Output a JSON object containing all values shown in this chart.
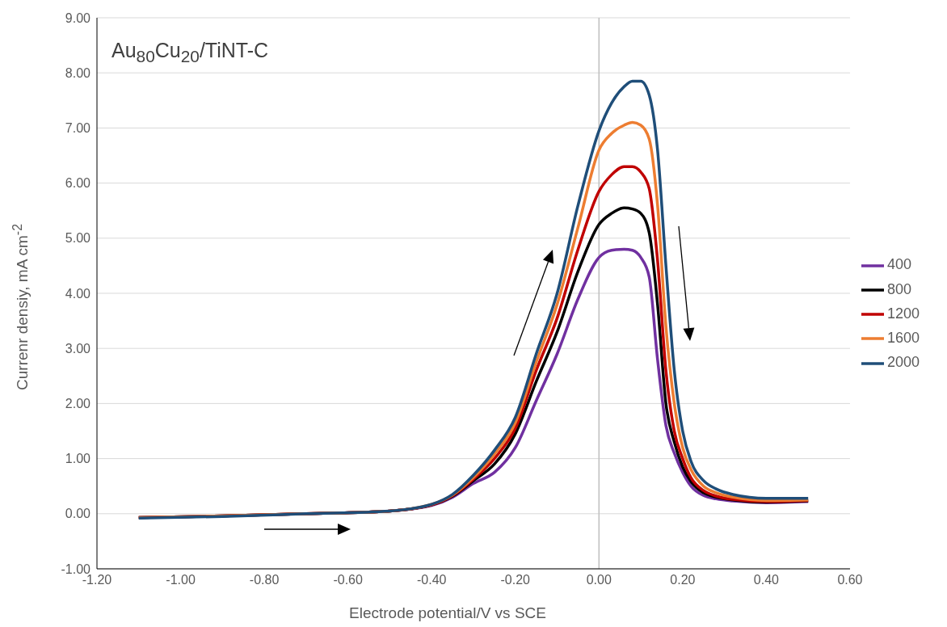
{
  "chart_data": {
    "type": "line",
    "xlabel": "Electrode potential/V vs SCE",
    "ylabel": "Currenr densiy, mA cm$^{-2}$",
    "annotations": [
      "Au$_{80}$Cu$_{20}$/TiNT-C"
    ],
    "x": [
      -1.1,
      -0.9,
      -0.7,
      -0.5,
      -0.4,
      -0.35,
      -0.3,
      -0.25,
      -0.2,
      -0.15,
      -0.1,
      -0.05,
      0,
      0.03,
      0.06,
      0.08,
      0.1,
      0.12,
      0.14,
      0.16,
      0.18,
      0.2,
      0.22,
      0.25,
      0.28,
      0.32,
      0.4,
      0.5
    ],
    "series": [
      {
        "name": "400",
        "color": "#7030a0",
        "values": [
          -0.07,
          -0.04,
          0.0,
          0.05,
          0.15,
          0.3,
          0.55,
          0.75,
          1.2,
          2.05,
          2.9,
          3.9,
          4.65,
          4.78,
          4.8,
          4.78,
          4.65,
          4.3,
          2.8,
          1.6,
          1.1,
          0.75,
          0.5,
          0.33,
          0.27,
          0.23,
          0.2,
          0.22
        ]
      },
      {
        "name": "800",
        "color": "#000000",
        "values": [
          -0.07,
          -0.04,
          0.0,
          0.05,
          0.16,
          0.32,
          0.6,
          0.9,
          1.45,
          2.4,
          3.3,
          4.4,
          5.25,
          5.45,
          5.55,
          5.53,
          5.45,
          5.1,
          3.8,
          2.0,
          1.3,
          0.85,
          0.58,
          0.38,
          0.3,
          0.25,
          0.21,
          0.23
        ]
      },
      {
        "name": "1200",
        "color": "#c00000",
        "values": [
          -0.07,
          -0.04,
          0.0,
          0.05,
          0.16,
          0.33,
          0.63,
          1.0,
          1.55,
          2.6,
          3.55,
          4.8,
          5.85,
          6.15,
          6.3,
          6.3,
          6.2,
          5.9,
          4.6,
          2.6,
          1.5,
          1.0,
          0.65,
          0.42,
          0.32,
          0.26,
          0.22,
          0.24
        ]
      },
      {
        "name": "1600",
        "color": "#ed7d31",
        "values": [
          -0.07,
          -0.04,
          0.0,
          0.05,
          0.17,
          0.34,
          0.66,
          1.08,
          1.65,
          2.75,
          3.8,
          5.2,
          6.6,
          6.9,
          7.05,
          7.1,
          7.05,
          6.8,
          5.6,
          3.4,
          2.0,
          1.2,
          0.8,
          0.5,
          0.38,
          0.3,
          0.24,
          0.25
        ]
      },
      {
        "name": "2000",
        "color": "#1f4e79",
        "values": [
          -0.08,
          -0.05,
          0.0,
          0.05,
          0.17,
          0.35,
          0.7,
          1.15,
          1.75,
          2.9,
          4.0,
          5.6,
          6.95,
          7.45,
          7.75,
          7.85,
          7.85,
          7.6,
          6.6,
          4.5,
          2.6,
          1.5,
          0.95,
          0.6,
          0.45,
          0.35,
          0.28,
          0.28
        ]
      }
    ],
    "xlim": [
      -1.2,
      0.6
    ],
    "xticks": [
      {
        "value": -1.2,
        "label": "-1.20"
      },
      {
        "value": -1,
        "label": "-1.00"
      },
      {
        "value": -0.8,
        "label": "-0.80"
      },
      {
        "value": -0.6,
        "label": "-0.60"
      },
      {
        "value": -0.4,
        "label": "-0.40"
      },
      {
        "value": -0.2,
        "label": "-0.20"
      },
      {
        "value": 0,
        "label": "0.00"
      },
      {
        "value": 0.2,
        "label": "0.20"
      },
      {
        "value": 0.4,
        "label": "0.40"
      },
      {
        "value": 0.6,
        "label": "0.60"
      }
    ],
    "ylim": [
      -1,
      9
    ],
    "yticks": [
      {
        "value": -1,
        "label": "-1.00"
      },
      {
        "value": 0,
        "label": "0.00"
      },
      {
        "value": 1,
        "label": "1.00"
      },
      {
        "value": 2,
        "label": "2.00"
      },
      {
        "value": 3,
        "label": "3.00"
      },
      {
        "value": 4,
        "label": "4.00"
      },
      {
        "value": 5,
        "label": "5.00"
      },
      {
        "value": 6,
        "label": "6.00"
      },
      {
        "value": 7,
        "label": "7.00"
      },
      {
        "value": 8,
        "label": "8.00"
      },
      {
        "value": 9,
        "label": "9.00"
      }
    ],
    "ref_lines": [
      {
        "axis": "x",
        "value": 0,
        "color": "#bfbfbf"
      }
    ],
    "grid": "y",
    "legend": "right",
    "marker": "none",
    "line_style": "solid"
  }
}
